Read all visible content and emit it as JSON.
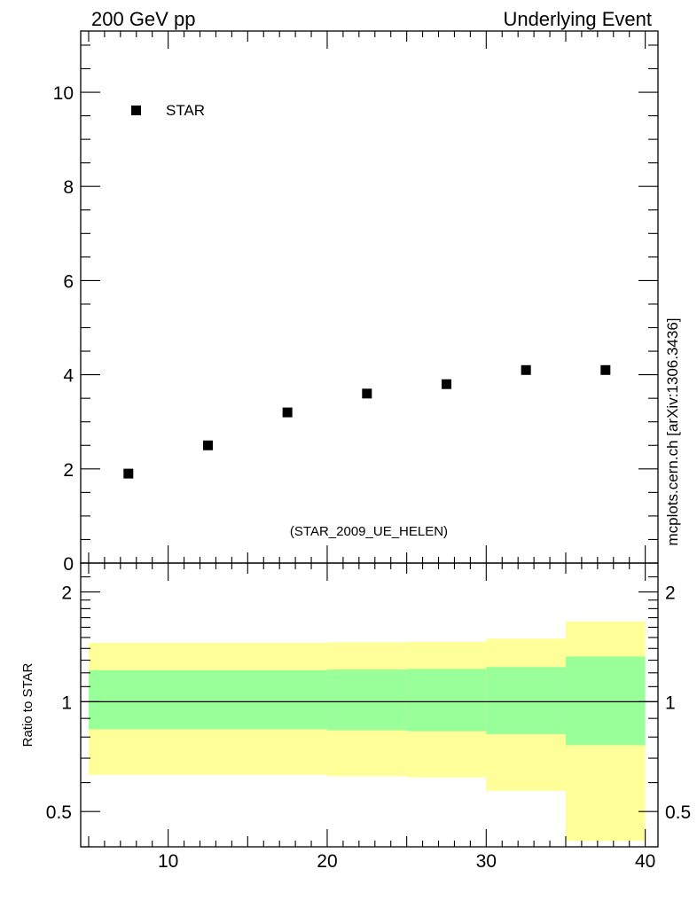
{
  "header": {
    "left": "200 GeV pp",
    "right": "Underlying Event"
  },
  "side_label": "mcplots.cern.ch [arXiv:1306.3436]",
  "watermark": "(STAR_2009_UE_HELEN)",
  "chart_data": [
    {
      "type": "scatter",
      "panel": "main",
      "legend_position": "top-left",
      "ylim": [
        0,
        11.3
      ],
      "xlim": [
        4.5,
        40.8
      ],
      "yticks": [
        0,
        2,
        4,
        6,
        8,
        10
      ],
      "ytick_labels": [
        "0",
        "2",
        "4",
        "6",
        "8",
        "10"
      ],
      "series": [
        {
          "name": "STAR",
          "marker": "square",
          "color": "#000000",
          "x": [
            7.5,
            12.5,
            17.5,
            22.5,
            27.5,
            32.5,
            37.5
          ],
          "y": [
            1.9,
            2.5,
            3.2,
            3.6,
            3.8,
            4.1,
            4.1
          ]
        }
      ]
    },
    {
      "type": "area",
      "panel": "ratio",
      "ylabel": "Ratio to STAR",
      "yscale": "log",
      "ylim": [
        0.4,
        2.4
      ],
      "xlim": [
        4.5,
        40.8
      ],
      "yticks": [
        0.5,
        1,
        2
      ],
      "ytick_labels": [
        "0.5",
        "1",
        "2"
      ],
      "xticks": [
        10,
        20,
        30,
        40
      ],
      "xtick_labels": [
        "10",
        "20",
        "30",
        "40"
      ],
      "reference_line": 1,
      "bins": [
        {
          "x0": 5,
          "x1": 20,
          "inner": [
            0.84,
            1.22
          ],
          "outer": [
            0.63,
            1.45
          ]
        },
        {
          "x0": 20,
          "x1": 25,
          "inner": [
            0.835,
            1.225
          ],
          "outer": [
            0.625,
            1.455
          ]
        },
        {
          "x0": 25,
          "x1": 30,
          "inner": [
            0.83,
            1.23
          ],
          "outer": [
            0.62,
            1.46
          ]
        },
        {
          "x0": 30,
          "x1": 35,
          "inner": [
            0.815,
            1.245
          ],
          "outer": [
            0.57,
            1.49
          ]
        },
        {
          "x0": 35,
          "x1": 40,
          "inner": [
            0.76,
            1.33
          ],
          "outer": [
            0.415,
            1.66
          ]
        }
      ],
      "colors": {
        "inner": "#99ff99",
        "outer": "#ffff99"
      }
    }
  ]
}
